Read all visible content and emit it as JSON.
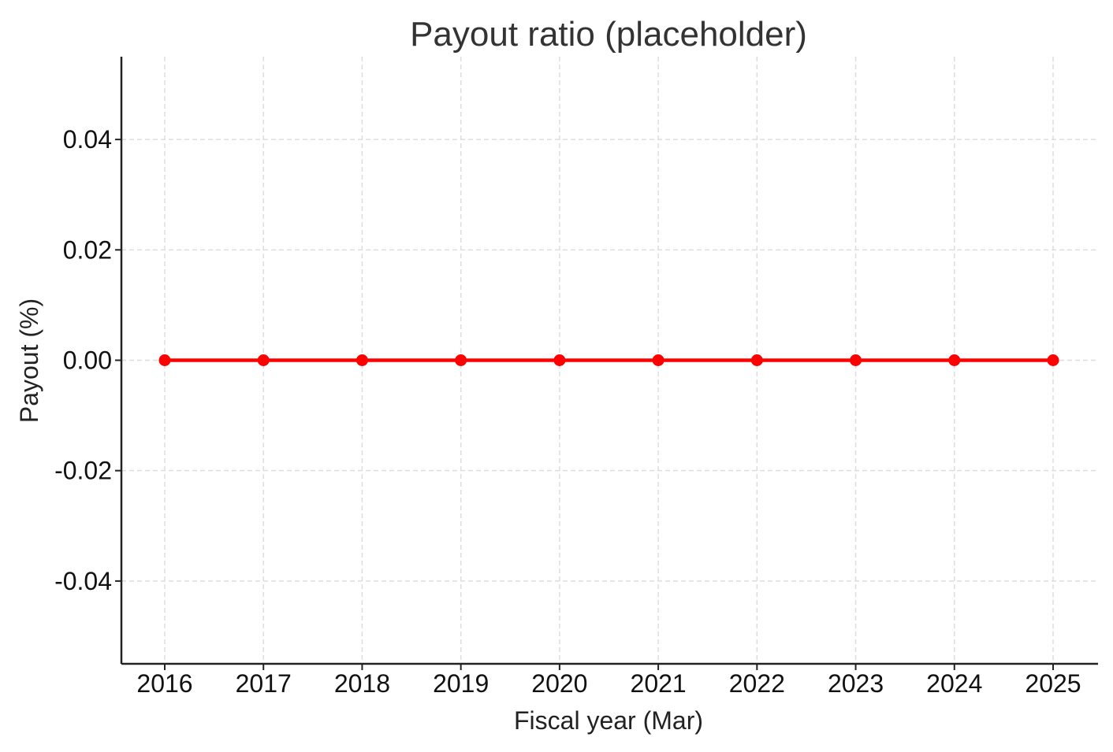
{
  "chart_data": {
    "type": "line",
    "title": "Payout ratio (placeholder)",
    "xlabel": "Fiscal year (Mar)",
    "ylabel": "Payout (%)",
    "categories": [
      "2016",
      "2017",
      "2018",
      "2019",
      "2020",
      "2021",
      "2022",
      "2023",
      "2024",
      "2025"
    ],
    "series": [
      {
        "values": [
          0,
          0,
          0,
          0,
          0,
          0,
          0,
          0,
          0,
          0
        ],
        "color": "#ff0000",
        "marker": "circle"
      }
    ],
    "yticks": [
      -0.04,
      -0.02,
      0.0,
      0.02,
      0.04
    ],
    "ytick_labels": [
      "-0.04",
      "-0.02",
      "0.00",
      "0.02",
      "0.04"
    ],
    "ylim": [
      -0.055,
      0.055
    ],
    "grid": true
  }
}
